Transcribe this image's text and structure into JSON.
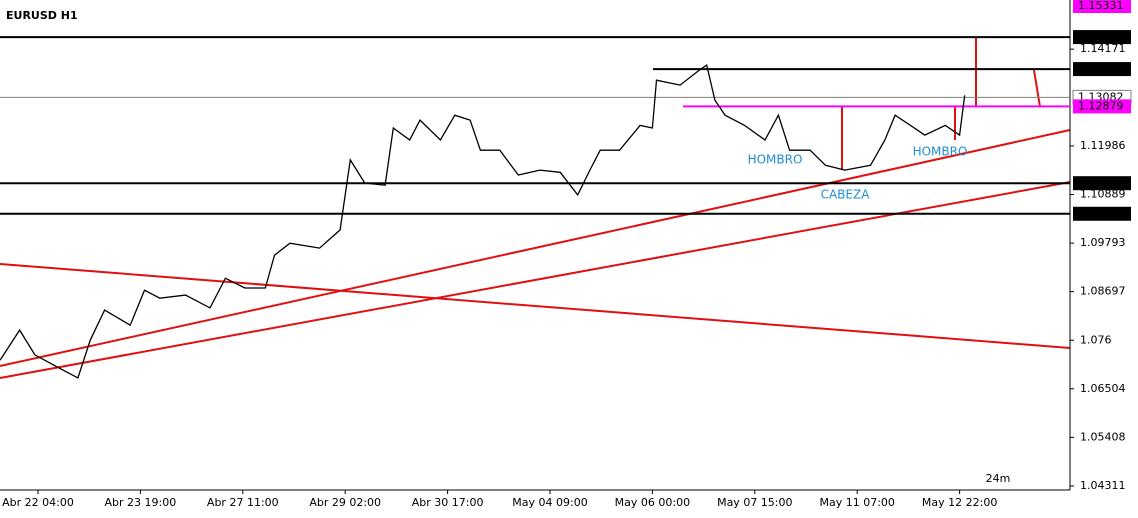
{
  "chart_data": {
    "type": "line",
    "title": "EURUSD H1",
    "x": [
      -0.37,
      -0.18,
      -0.03,
      0.21,
      0.39,
      0.51,
      0.65,
      0.9,
      1.04,
      1.19,
      1.44,
      1.68,
      1.83,
      2.02,
      2.22,
      2.31,
      2.46,
      2.75,
      2.95,
      3.05,
      3.19,
      3.39,
      3.47,
      3.63,
      3.73,
      3.93,
      4.07,
      4.22,
      4.32,
      4.51,
      4.69,
      4.9,
      5.1,
      5.27,
      5.39,
      5.49,
      5.68,
      5.88,
      6.0,
      6.04,
      6.27,
      6.46,
      6.53,
      6.61,
      6.71,
      6.9,
      7.1,
      7.23,
      7.34,
      7.54,
      7.69,
      7.88,
      8.13,
      8.27,
      8.37,
      8.52,
      8.66,
      8.86,
      9.0,
      9.05
    ],
    "series": [
      {
        "name": "EURUSD",
        "color": "#000000",
        "values": [
          1.0715,
          1.0783,
          1.0727,
          1.0697,
          1.0675,
          1.076,
          1.0828,
          1.0794,
          1.0873,
          1.0855,
          1.0862,
          1.0833,
          1.09,
          1.0878,
          1.0878,
          1.0952,
          1.0979,
          1.0968,
          1.1009,
          1.1167,
          1.1115,
          1.111,
          1.1239,
          1.1212,
          1.1257,
          1.1212,
          1.1268,
          1.1257,
          1.1189,
          1.1189,
          1.1133,
          1.1144,
          1.1139,
          1.1088,
          1.1144,
          1.1189,
          1.1189,
          1.1245,
          1.1239,
          1.1347,
          1.1336,
          1.137,
          1.1381,
          1.1302,
          1.1268,
          1.1245,
          1.1212,
          1.1268,
          1.1189,
          1.1189,
          1.1155,
          1.1144,
          1.1155,
          1.1212,
          1.1268,
          1.1245,
          1.1223,
          1.1245,
          1.1223,
          1.1313
        ]
      }
    ],
    "xlim": [
      -0.371,
      10.078
    ],
    "xticks": [
      {
        "value": 0,
        "label": "Abr 22 04:00"
      },
      {
        "value": 1,
        "label": "Abr 23 19:00"
      },
      {
        "value": 2,
        "label": "Abr 27 11:00"
      },
      {
        "value": 3,
        "label": "Abr 29 02:00"
      },
      {
        "value": 4,
        "label": "Abr 30 17:00"
      },
      {
        "value": 5,
        "label": "May 04 09:00"
      },
      {
        "value": 6,
        "label": "May 06 00:00"
      },
      {
        "value": 7,
        "label": "May 07 15:00"
      },
      {
        "value": 8,
        "label": "May 11 07:00"
      },
      {
        "value": 9,
        "label": "May 12 22:00"
      }
    ],
    "ylim": [
      1.0422,
      1.1528
    ],
    "yticks": [
      1.14171,
      1.11986,
      1.10889,
      1.09793,
      1.08697,
      1.076,
      1.06504,
      1.05408,
      1.04311
    ],
    "levels": [
      {
        "value": 1.15331,
        "color": "#ff00ff"
      },
      {
        "value": 1.14443,
        "color": "#000000"
      },
      {
        "value": 1.13721,
        "color": "#000000"
      },
      {
        "value": 1.13082,
        "color": "#808080"
      },
      {
        "value": 1.12879,
        "color": "#ff00ff"
      },
      {
        "value": 1.11145,
        "color": "#000000"
      },
      {
        "value": 1.10455,
        "color": "#000000"
      }
    ],
    "annotations": [
      "HOMBRO",
      "CABEZA",
      "HOMBRO",
      "24m"
    ]
  }
}
